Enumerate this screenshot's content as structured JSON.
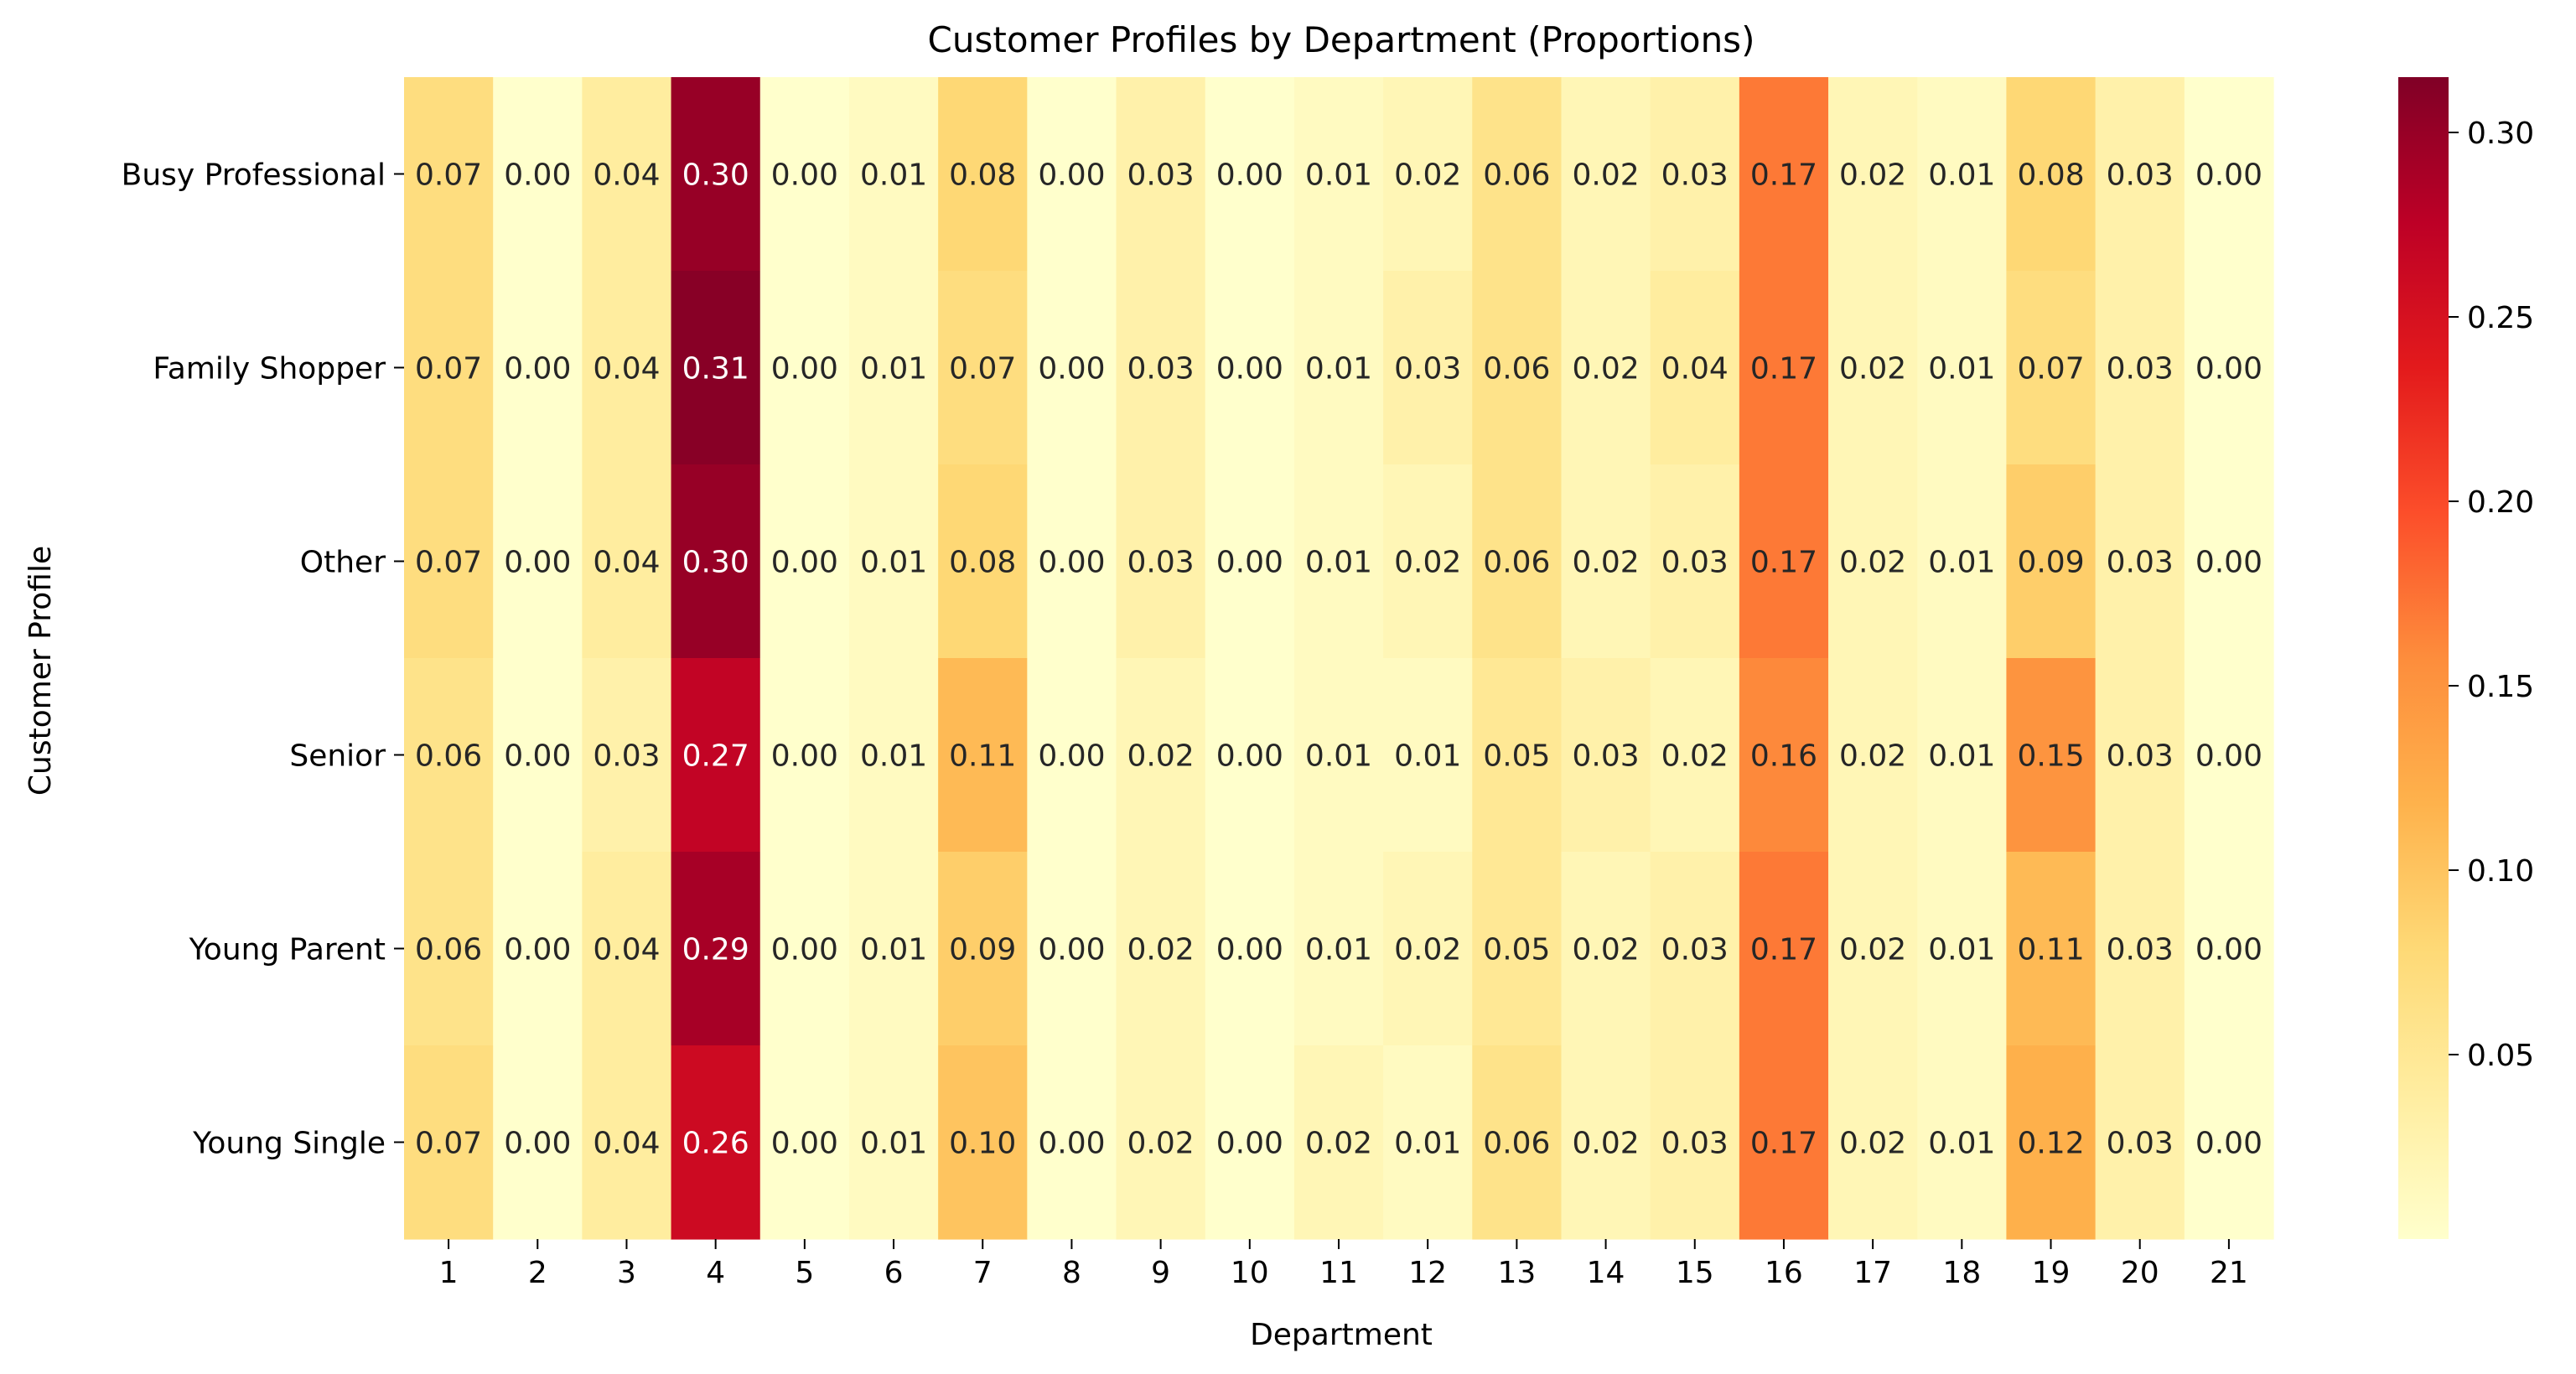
{
  "chart_data": {
    "type": "heatmap",
    "title": "Customer Profiles by Department (Proportions)",
    "xlabel": "Department",
    "ylabel": "Customer Profile",
    "x_categories": [
      "1",
      "2",
      "3",
      "4",
      "5",
      "6",
      "7",
      "8",
      "9",
      "10",
      "11",
      "12",
      "13",
      "14",
      "15",
      "16",
      "17",
      "18",
      "19",
      "20",
      "21"
    ],
    "y_categories": [
      "Busy Professional",
      "Family Shopper",
      "Other",
      "Senior",
      "Young Parent",
      "Young Single"
    ],
    "values": [
      [
        0.07,
        0.0,
        0.04,
        0.3,
        0.0,
        0.01,
        0.08,
        0.0,
        0.03,
        0.0,
        0.01,
        0.02,
        0.06,
        0.02,
        0.03,
        0.17,
        0.02,
        0.01,
        0.08,
        0.03,
        0.0
      ],
      [
        0.07,
        0.0,
        0.04,
        0.31,
        0.0,
        0.01,
        0.07,
        0.0,
        0.03,
        0.0,
        0.01,
        0.03,
        0.06,
        0.02,
        0.04,
        0.17,
        0.02,
        0.01,
        0.07,
        0.03,
        0.0
      ],
      [
        0.07,
        0.0,
        0.04,
        0.3,
        0.0,
        0.01,
        0.08,
        0.0,
        0.03,
        0.0,
        0.01,
        0.02,
        0.06,
        0.02,
        0.03,
        0.17,
        0.02,
        0.01,
        0.09,
        0.03,
        0.0
      ],
      [
        0.06,
        0.0,
        0.03,
        0.27,
        0.0,
        0.01,
        0.11,
        0.0,
        0.02,
        0.0,
        0.01,
        0.01,
        0.05,
        0.03,
        0.02,
        0.16,
        0.02,
        0.01,
        0.15,
        0.03,
        0.0
      ],
      [
        0.06,
        0.0,
        0.04,
        0.29,
        0.0,
        0.01,
        0.09,
        0.0,
        0.02,
        0.0,
        0.01,
        0.02,
        0.05,
        0.02,
        0.03,
        0.17,
        0.02,
        0.01,
        0.11,
        0.03,
        0.0
      ],
      [
        0.07,
        0.0,
        0.04,
        0.26,
        0.0,
        0.01,
        0.1,
        0.0,
        0.02,
        0.0,
        0.02,
        0.01,
        0.06,
        0.02,
        0.03,
        0.17,
        0.02,
        0.01,
        0.12,
        0.03,
        0.0
      ]
    ],
    "colormap": "YlOrRd",
    "color_range": [
      0.0,
      0.315
    ],
    "colorbar_ticks": [
      "0.05",
      "0.10",
      "0.15",
      "0.20",
      "0.25",
      "0.30"
    ],
    "colorbar_tick_values": [
      0.05,
      0.1,
      0.15,
      0.2,
      0.25,
      0.3
    ],
    "annotation_text_dark": "#262626",
    "annotation_text_light": "#ffffff",
    "grid": false,
    "legend": "colorbar-right"
  }
}
